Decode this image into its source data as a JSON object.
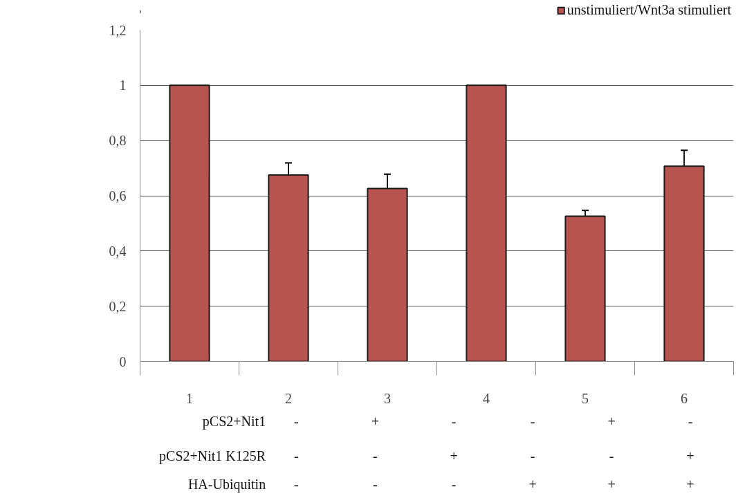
{
  "chart_data": {
    "type": "bar",
    "categories": [
      "1",
      "2",
      "3",
      "4",
      "5",
      "6"
    ],
    "series": [
      {
        "name": "unstimuliert/Wnt3a stimuliert",
        "color": "#b85450",
        "values": [
          1,
          0.675,
          0.626,
          1,
          0.526,
          0.707
        ],
        "errors": [
          null,
          0.044,
          0.052,
          null,
          0.021,
          0.058
        ]
      }
    ],
    "ylim": [
      0,
      1.2
    ],
    "yticks": [
      {
        "value": 0,
        "label": "0"
      },
      {
        "value": 0.2,
        "label": "0,2"
      },
      {
        "value": 0.4,
        "label": "0,4"
      },
      {
        "value": 0.6,
        "label": "0,6"
      },
      {
        "value": 0.8,
        "label": "0,8"
      },
      {
        "value": 1,
        "label": "1"
      },
      {
        "value": 1.2,
        "label": "1,2"
      }
    ],
    "grid": "y",
    "legend": "top right",
    "annotations": [
      "pCS2+Nit1",
      "-",
      "+",
      "-",
      "-",
      "+",
      "-",
      "pCS2+Nit1 K125R",
      "-",
      "-",
      "+",
      "-",
      "-",
      "+",
      "HA-Ubiquitin",
      "-",
      "-",
      "-",
      "+",
      "+",
      "+"
    ]
  }
}
